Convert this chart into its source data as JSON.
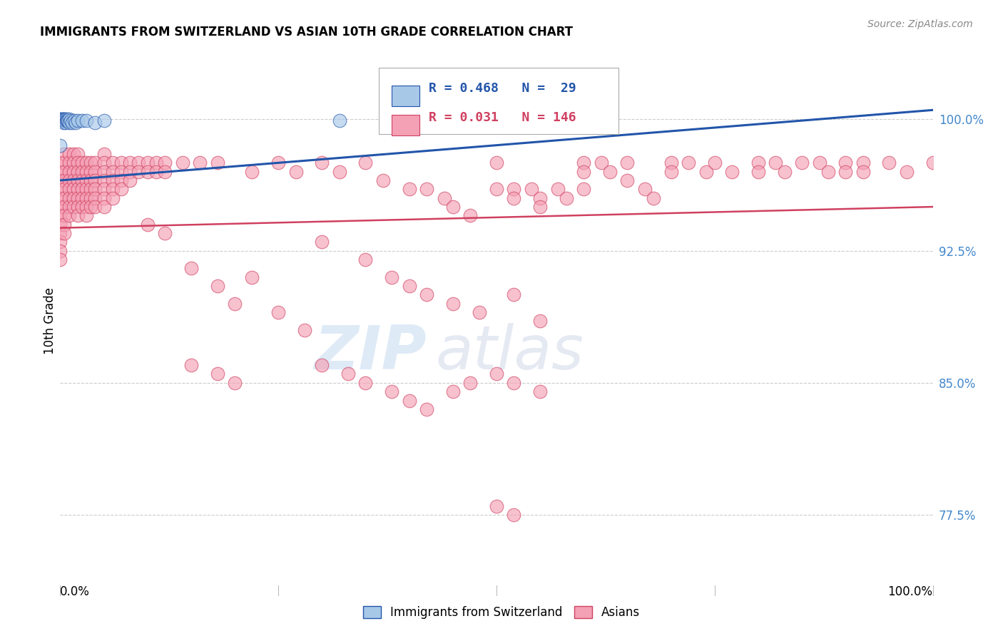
{
  "title": "IMMIGRANTS FROM SWITZERLAND VS ASIAN 10TH GRADE CORRELATION CHART",
  "source": "Source: ZipAtlas.com",
  "ylabel": "10th Grade",
  "ytick_labels": [
    "100.0%",
    "92.5%",
    "85.0%",
    "77.5%"
  ],
  "ytick_values": [
    1.0,
    0.925,
    0.85,
    0.775
  ],
  "xlim": [
    0.0,
    1.0
  ],
  "ylim": [
    0.735,
    1.035
  ],
  "color_swiss": "#a8c8e8",
  "color_asian": "#f4a0b5",
  "line_color_swiss": "#2255aa",
  "line_color_asian": "#d04060",
  "background": "#ffffff",
  "watermark_zip": "ZIP",
  "watermark_atlas": "atlas",
  "swiss_trendline": [
    0.0,
    0.965,
    1.0,
    1.005
  ],
  "asian_trendline": [
    0.0,
    0.938,
    1.0,
    0.95
  ],
  "swiss_points": [
    [
      0.0,
      1.0
    ],
    [
      0.0,
      1.0
    ],
    [
      0.002,
      1.0
    ],
    [
      0.002,
      0.999
    ],
    [
      0.003,
      1.0
    ],
    [
      0.003,
      0.999
    ],
    [
      0.004,
      1.0
    ],
    [
      0.004,
      0.998
    ],
    [
      0.005,
      1.0
    ],
    [
      0.005,
      0.999
    ],
    [
      0.006,
      1.0
    ],
    [
      0.006,
      0.998
    ],
    [
      0.007,
      0.999
    ],
    [
      0.008,
      1.0
    ],
    [
      0.008,
      0.999
    ],
    [
      0.009,
      0.999
    ],
    [
      0.01,
      1.0
    ],
    [
      0.01,
      0.998
    ],
    [
      0.012,
      0.999
    ],
    [
      0.014,
      0.998
    ],
    [
      0.016,
      0.999
    ],
    [
      0.018,
      0.998
    ],
    [
      0.02,
      0.999
    ],
    [
      0.025,
      0.999
    ],
    [
      0.03,
      0.999
    ],
    [
      0.04,
      0.998
    ],
    [
      0.05,
      0.999
    ],
    [
      0.32,
      0.999
    ],
    [
      0.0,
      0.985
    ]
  ],
  "asian_points": [
    [
      0.0,
      0.975
    ],
    [
      0.0,
      0.97
    ],
    [
      0.0,
      0.965
    ],
    [
      0.0,
      0.96
    ],
    [
      0.0,
      0.955
    ],
    [
      0.0,
      0.95
    ],
    [
      0.0,
      0.945
    ],
    [
      0.0,
      0.94
    ],
    [
      0.0,
      0.935
    ],
    [
      0.0,
      0.93
    ],
    [
      0.0,
      0.925
    ],
    [
      0.0,
      0.92
    ],
    [
      0.005,
      0.98
    ],
    [
      0.005,
      0.975
    ],
    [
      0.005,
      0.97
    ],
    [
      0.005,
      0.965
    ],
    [
      0.005,
      0.96
    ],
    [
      0.005,
      0.955
    ],
    [
      0.005,
      0.95
    ],
    [
      0.005,
      0.945
    ],
    [
      0.005,
      0.94
    ],
    [
      0.005,
      0.935
    ],
    [
      0.01,
      0.98
    ],
    [
      0.01,
      0.975
    ],
    [
      0.01,
      0.97
    ],
    [
      0.01,
      0.965
    ],
    [
      0.01,
      0.96
    ],
    [
      0.01,
      0.955
    ],
    [
      0.01,
      0.95
    ],
    [
      0.01,
      0.945
    ],
    [
      0.015,
      0.98
    ],
    [
      0.015,
      0.975
    ],
    [
      0.015,
      0.97
    ],
    [
      0.015,
      0.965
    ],
    [
      0.015,
      0.96
    ],
    [
      0.015,
      0.955
    ],
    [
      0.015,
      0.95
    ],
    [
      0.02,
      0.98
    ],
    [
      0.02,
      0.975
    ],
    [
      0.02,
      0.97
    ],
    [
      0.02,
      0.965
    ],
    [
      0.02,
      0.96
    ],
    [
      0.02,
      0.955
    ],
    [
      0.02,
      0.95
    ],
    [
      0.02,
      0.945
    ],
    [
      0.025,
      0.975
    ],
    [
      0.025,
      0.97
    ],
    [
      0.025,
      0.965
    ],
    [
      0.025,
      0.96
    ],
    [
      0.025,
      0.955
    ],
    [
      0.025,
      0.95
    ],
    [
      0.03,
      0.975
    ],
    [
      0.03,
      0.97
    ],
    [
      0.03,
      0.965
    ],
    [
      0.03,
      0.96
    ],
    [
      0.03,
      0.955
    ],
    [
      0.03,
      0.95
    ],
    [
      0.03,
      0.945
    ],
    [
      0.035,
      0.975
    ],
    [
      0.035,
      0.97
    ],
    [
      0.035,
      0.965
    ],
    [
      0.035,
      0.96
    ],
    [
      0.035,
      0.955
    ],
    [
      0.035,
      0.95
    ],
    [
      0.04,
      0.975
    ],
    [
      0.04,
      0.97
    ],
    [
      0.04,
      0.965
    ],
    [
      0.04,
      0.96
    ],
    [
      0.04,
      0.955
    ],
    [
      0.04,
      0.95
    ],
    [
      0.05,
      0.98
    ],
    [
      0.05,
      0.975
    ],
    [
      0.05,
      0.97
    ],
    [
      0.05,
      0.965
    ],
    [
      0.05,
      0.96
    ],
    [
      0.05,
      0.955
    ],
    [
      0.05,
      0.95
    ],
    [
      0.06,
      0.975
    ],
    [
      0.06,
      0.97
    ],
    [
      0.06,
      0.965
    ],
    [
      0.06,
      0.96
    ],
    [
      0.06,
      0.955
    ],
    [
      0.07,
      0.975
    ],
    [
      0.07,
      0.97
    ],
    [
      0.07,
      0.965
    ],
    [
      0.07,
      0.96
    ],
    [
      0.08,
      0.975
    ],
    [
      0.08,
      0.97
    ],
    [
      0.08,
      0.965
    ],
    [
      0.09,
      0.975
    ],
    [
      0.09,
      0.97
    ],
    [
      0.1,
      0.975
    ],
    [
      0.1,
      0.97
    ],
    [
      0.11,
      0.975
    ],
    [
      0.11,
      0.97
    ],
    [
      0.12,
      0.975
    ],
    [
      0.12,
      0.97
    ],
    [
      0.14,
      0.975
    ],
    [
      0.16,
      0.975
    ],
    [
      0.18,
      0.975
    ],
    [
      0.22,
      0.97
    ],
    [
      0.25,
      0.975
    ],
    [
      0.27,
      0.97
    ],
    [
      0.3,
      0.975
    ],
    [
      0.32,
      0.97
    ],
    [
      0.35,
      0.975
    ],
    [
      0.37,
      0.965
    ],
    [
      0.4,
      0.96
    ],
    [
      0.42,
      0.96
    ],
    [
      0.44,
      0.955
    ],
    [
      0.45,
      0.95
    ],
    [
      0.47,
      0.945
    ],
    [
      0.5,
      0.975
    ],
    [
      0.5,
      0.96
    ],
    [
      0.52,
      0.96
    ],
    [
      0.52,
      0.955
    ],
    [
      0.54,
      0.96
    ],
    [
      0.55,
      0.955
    ],
    [
      0.55,
      0.95
    ],
    [
      0.57,
      0.96
    ],
    [
      0.58,
      0.955
    ],
    [
      0.6,
      0.975
    ],
    [
      0.6,
      0.97
    ],
    [
      0.6,
      0.96
    ],
    [
      0.62,
      0.975
    ],
    [
      0.63,
      0.97
    ],
    [
      0.65,
      0.975
    ],
    [
      0.65,
      0.965
    ],
    [
      0.67,
      0.96
    ],
    [
      0.68,
      0.955
    ],
    [
      0.7,
      0.975
    ],
    [
      0.7,
      0.97
    ],
    [
      0.72,
      0.975
    ],
    [
      0.74,
      0.97
    ],
    [
      0.75,
      0.975
    ],
    [
      0.77,
      0.97
    ],
    [
      0.8,
      0.975
    ],
    [
      0.8,
      0.97
    ],
    [
      0.82,
      0.975
    ],
    [
      0.83,
      0.97
    ],
    [
      0.85,
      0.975
    ],
    [
      0.87,
      0.975
    ],
    [
      0.88,
      0.97
    ],
    [
      0.9,
      0.975
    ],
    [
      0.9,
      0.97
    ],
    [
      0.92,
      0.975
    ],
    [
      0.92,
      0.97
    ],
    [
      0.95,
      0.975
    ],
    [
      0.97,
      0.97
    ],
    [
      1.0,
      0.975
    ],
    [
      0.3,
      0.93
    ],
    [
      0.35,
      0.92
    ],
    [
      0.38,
      0.91
    ],
    [
      0.4,
      0.905
    ],
    [
      0.42,
      0.9
    ],
    [
      0.45,
      0.895
    ],
    [
      0.48,
      0.89
    ],
    [
      0.52,
      0.9
    ],
    [
      0.55,
      0.885
    ],
    [
      0.1,
      0.94
    ],
    [
      0.12,
      0.935
    ],
    [
      0.15,
      0.915
    ],
    [
      0.18,
      0.905
    ],
    [
      0.2,
      0.895
    ],
    [
      0.22,
      0.91
    ],
    [
      0.25,
      0.89
    ],
    [
      0.28,
      0.88
    ],
    [
      0.15,
      0.86
    ],
    [
      0.18,
      0.855
    ],
    [
      0.2,
      0.85
    ],
    [
      0.3,
      0.86
    ],
    [
      0.33,
      0.855
    ],
    [
      0.35,
      0.85
    ],
    [
      0.38,
      0.845
    ],
    [
      0.4,
      0.84
    ],
    [
      0.42,
      0.835
    ],
    [
      0.45,
      0.845
    ],
    [
      0.47,
      0.85
    ],
    [
      0.5,
      0.855
    ],
    [
      0.52,
      0.85
    ],
    [
      0.55,
      0.845
    ],
    [
      0.5,
      0.78
    ],
    [
      0.52,
      0.775
    ]
  ]
}
